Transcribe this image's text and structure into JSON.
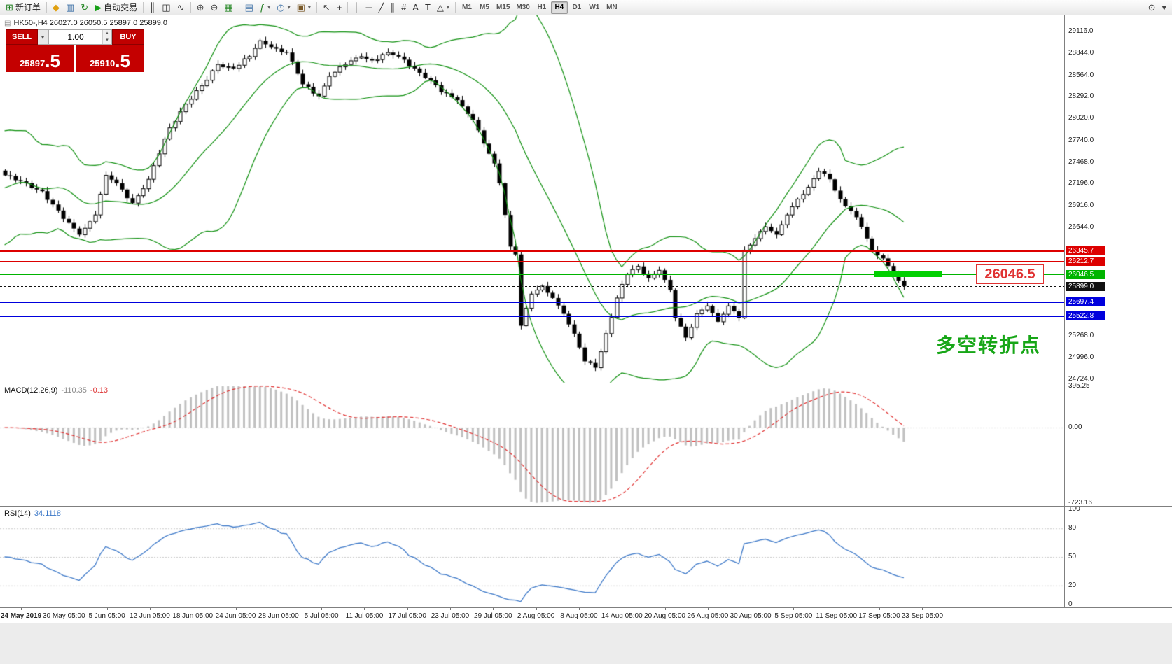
{
  "toolbar": {
    "items": [
      {
        "name": "new-order-button",
        "glyph": "⊞",
        "glyph_color": "#1a7a1a",
        "label": "新订单"
      },
      {
        "sep": true
      },
      {
        "name": "mql5-market-icon",
        "glyph": "◆",
        "glyph_color": "#e0a010"
      },
      {
        "name": "data-window-icon",
        "glyph": "▥",
        "glyph_color": "#3a6ea5"
      },
      {
        "name": "refresh-icon",
        "glyph": "↻",
        "glyph_color": "#2a8a2a"
      },
      {
        "name": "autotrading-button",
        "glyph": "▶",
        "glyph_color": "#18a018",
        "label": "自动交易"
      },
      {
        "sep": true
      },
      {
        "name": "bar-chart-button",
        "glyph": "║",
        "glyph_color": "#333333"
      },
      {
        "name": "candlestick-chart-button",
        "glyph": "◫",
        "glyph_color": "#333333"
      },
      {
        "name": "line-chart-button",
        "glyph": "∿",
        "glyph_color": "#333333"
      },
      {
        "sep": true
      },
      {
        "name": "zoom-in-button",
        "glyph": "⊕",
        "glyph_color": "#444444"
      },
      {
        "name": "zoom-out-button",
        "glyph": "⊖",
        "glyph_color": "#444444"
      },
      {
        "name": "auto-scroll-button",
        "glyph": "▦",
        "glyph_color": "#2a8a2a"
      },
      {
        "sep": true
      },
      {
        "name": "tile-windows-button",
        "glyph": "▤",
        "glyph_color": "#3a6ea5"
      },
      {
        "name": "indicators-button",
        "glyph": "ƒ",
        "glyph_color": "#1a7a1a",
        "dropdown": true
      },
      {
        "name": "periods-button",
        "glyph": "◷",
        "glyph_color": "#3a6ea5",
        "dropdown": true
      },
      {
        "name": "templates-button",
        "glyph": "▣",
        "glyph_color": "#7a5a2a",
        "dropdown": true
      },
      {
        "sep": true
      },
      {
        "name": "cursor-button",
        "glyph": "↖",
        "glyph_color": "#333333"
      },
      {
        "name": "crosshair-button",
        "glyph": "+",
        "glyph_color": "#333333"
      },
      {
        "sep": true
      },
      {
        "name": "vertical-line-button",
        "glyph": "│",
        "glyph_color": "#333333"
      },
      {
        "name": "horizontal-line-button",
        "glyph": "─",
        "glyph_color": "#333333"
      },
      {
        "name": "trendline-button",
        "glyph": "╱",
        "glyph_color": "#333333"
      },
      {
        "name": "channel-button",
        "glyph": "∥",
        "glyph_color": "#333333"
      },
      {
        "name": "fibonacci-button",
        "glyph": "#",
        "glyph_color": "#333333"
      },
      {
        "name": "text-button",
        "glyph": "A",
        "glyph_color": "#333333"
      },
      {
        "name": "text-label-button",
        "glyph": "T",
        "glyph_color": "#333333"
      },
      {
        "name": "shapes-button",
        "glyph": "△",
        "glyph_color": "#333333",
        "dropdown": true
      },
      {
        "sep": true
      }
    ],
    "timeframes": [
      "M1",
      "M5",
      "M15",
      "M30",
      "H1",
      "H4",
      "D1",
      "W1",
      "MN"
    ],
    "active_timeframe": "H4",
    "right_items": [
      {
        "name": "search-icon",
        "glyph": "⊙",
        "glyph_color": "#444444"
      },
      {
        "name": "options-icon",
        "glyph": "▾",
        "glyph_color": "#444444"
      }
    ]
  },
  "quote_panel": {
    "sell_label": "SELL",
    "buy_label": "BUY",
    "volume": "1.00",
    "sell_price_main": "25897",
    "sell_price_frac": ".5",
    "buy_price_main": "25910",
    "buy_price_frac": ".5"
  },
  "chart": {
    "symbol_line": "HK50-,H4 26027.0 26050.5 25897.0 25899.0",
    "price_tag": "26046.5",
    "price_tag_color": "#e03232",
    "note_text": "多空转折点",
    "note_color": "#17a617",
    "segment_color": "#00d000",
    "macd": {
      "name": "MACD(12,26,9)",
      "value1": "-110.35",
      "value2": "-0.13",
      "value1_color": "#8a8a8a",
      "value2_color": "#dd3333"
    },
    "rsi": {
      "name": "RSI(14)",
      "value": "34.1118",
      "value_color": "#3c78c8"
    }
  },
  "chart_data": {
    "type": "candlestick",
    "symbol": "HK50-",
    "timeframe": "H4",
    "bars": 170,
    "y_range": [
      24680,
      29320
    ],
    "y_axis_labels": [
      "29116.0",
      "28844.0",
      "28564.0",
      "28292.0",
      "28020.0",
      "27740.0",
      "27468.0",
      "27196.0",
      "26916.0",
      "26644.0",
      "25268.0",
      "24996.0",
      "24724.0"
    ],
    "close_keyframes": [
      [
        0,
        27300
      ],
      [
        7,
        27100
      ],
      [
        11,
        26750
      ],
      [
        14,
        26550
      ],
      [
        17,
        26800
      ],
      [
        19,
        27300
      ],
      [
        21,
        27200
      ],
      [
        24,
        26950
      ],
      [
        27,
        27250
      ],
      [
        31,
        27900
      ],
      [
        34,
        28200
      ],
      [
        38,
        28500
      ],
      [
        40,
        28700
      ],
      [
        43,
        28650
      ],
      [
        46,
        28800
      ],
      [
        48,
        29000
      ],
      [
        51,
        28900
      ],
      [
        53,
        28850
      ],
      [
        56,
        28450
      ],
      [
        59,
        28300
      ],
      [
        61,
        28550
      ],
      [
        64,
        28700
      ],
      [
        67,
        28800
      ],
      [
        69,
        28750
      ],
      [
        72,
        28850
      ],
      [
        74,
        28800
      ],
      [
        77,
        28650
      ],
      [
        80,
        28500
      ],
      [
        82,
        28350
      ],
      [
        85,
        28250
      ],
      [
        88,
        28000
      ],
      [
        90,
        27700
      ],
      [
        92,
        27450
      ],
      [
        93,
        27200
      ],
      [
        94,
        26800
      ],
      [
        95,
        26400
      ],
      [
        96,
        26300
      ],
      [
        97,
        25400
      ],
      [
        99,
        25800
      ],
      [
        101,
        25900
      ],
      [
        103,
        25750
      ],
      [
        105,
        25550
      ],
      [
        107,
        25300
      ],
      [
        109,
        24950
      ],
      [
        111,
        24870
      ],
      [
        113,
        25300
      ],
      [
        115,
        25750
      ],
      [
        117,
        26050
      ],
      [
        119,
        26150
      ],
      [
        121,
        26000
      ],
      [
        123,
        26100
      ],
      [
        125,
        25850
      ],
      [
        126,
        25500
      ],
      [
        128,
        25250
      ],
      [
        130,
        25550
      ],
      [
        132,
        25650
      ],
      [
        134,
        25450
      ],
      [
        136,
        25650
      ],
      [
        138,
        25500
      ],
      [
        139,
        26350
      ],
      [
        141,
        26500
      ],
      [
        143,
        26650
      ],
      [
        145,
        26550
      ],
      [
        147,
        26800
      ],
      [
        149,
        27000
      ],
      [
        151,
        27150
      ],
      [
        153,
        27350
      ],
      [
        155,
        27250
      ],
      [
        157,
        27000
      ],
      [
        159,
        26850
      ],
      [
        161,
        26650
      ],
      [
        163,
        26350
      ],
      [
        165,
        26250
      ],
      [
        167,
        26050
      ],
      [
        169,
        25899
      ]
    ],
    "bollinger": {
      "period": 20,
      "deviation": 2,
      "color": "#0e8f0e"
    },
    "price_lines": [
      {
        "name": "resistance-line-1",
        "price": 26345.7,
        "label": "26345.7",
        "color": "#dd0000",
        "thickness": 2
      },
      {
        "name": "resistance-line-2",
        "price": 26212.7,
        "label": "26212.7",
        "color": "#dd0000",
        "thickness": 2
      },
      {
        "name": "pivot-line",
        "price": 26046.5,
        "label": "26046.5",
        "color": "#00b400",
        "thickness": 2
      },
      {
        "name": "bid-price-line",
        "price": 25899.0,
        "label": "25899.0",
        "color": "#111111",
        "thickness": 1,
        "dashed": true
      },
      {
        "name": "support-line-1",
        "price": 25697.4,
        "label": "25697.4",
        "color": "#0000dd",
        "thickness": 2
      },
      {
        "name": "support-line-2",
        "price": 25522.8,
        "label": "25522.8",
        "color": "#0000dd",
        "thickness": 2
      }
    ],
    "x_labels": [
      "24 May 2019",
      "30 May 05:00",
      "5 Jun 05:00",
      "12 Jun 05:00",
      "18 Jun 05:00",
      "24 Jun 05:00",
      "28 Jun 05:00",
      "5 Jul 05:00",
      "11 Jul 05:00",
      "17 Jul 05:00",
      "23 Jul 05:00",
      "29 Jul 05:00",
      "2 Aug 05:00",
      "8 Aug 05:00",
      "14 Aug 05:00",
      "20 Aug 05:00",
      "26 Aug 05:00",
      "30 Aug 05:00",
      "5 Sep 05:00",
      "11 Sep 05:00",
      "17 Sep 05:00",
      "23 Sep 05:00"
    ],
    "macd": {
      "params": "12,26,9",
      "axis_values": [
        395.25,
        0,
        -723.16
      ],
      "axis_labels": [
        "395.25",
        "0.00",
        "-723.16"
      ],
      "histogram_color": "#c0c0c0",
      "signal_color": "#e03030"
    },
    "rsi": {
      "period": 14,
      "axis_values": [
        100,
        80,
        50,
        20,
        0
      ],
      "axis_labels": [
        "100",
        "80",
        "50",
        "20",
        "0"
      ],
      "levels": [
        80,
        50,
        20
      ],
      "line_color": "#3c78c8"
    }
  }
}
